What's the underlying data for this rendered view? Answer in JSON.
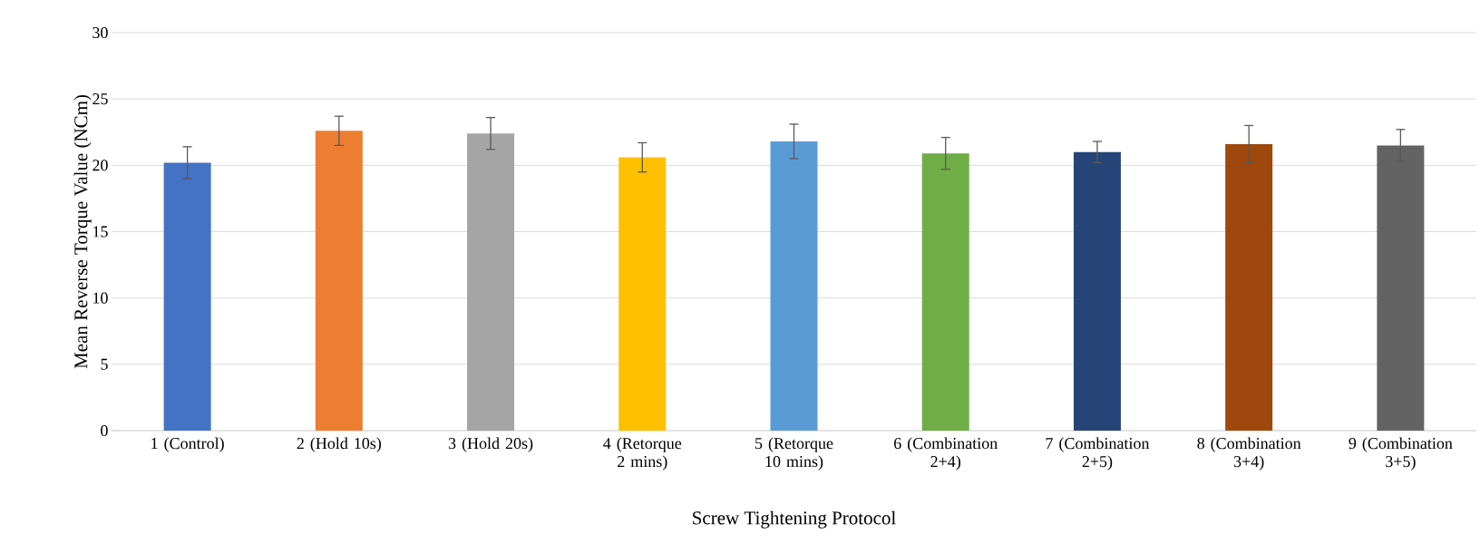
{
  "chart_data": {
    "type": "bar",
    "xlabel": "Screw Tightening Protocol",
    "ylabel": "Mean Reverse Torque Value (NCm)",
    "categories": [
      "1 (Control)",
      "2 (Hold 10s)",
      "3 (Hold 20s)",
      "4 (Retorque 2 mins)",
      "5 (Retorque 10 mins)",
      "6 (Combination 2+4)",
      "7 (Combination 2+5)",
      "8 (Combination 3+4)",
      "9 (Combination 3+5)"
    ],
    "values": [
      20.2,
      22.6,
      22.4,
      20.6,
      21.8,
      20.9,
      21.0,
      21.6,
      21.5
    ],
    "errors": [
      1.2,
      1.1,
      1.2,
      1.1,
      1.3,
      1.2,
      0.8,
      1.4,
      1.2
    ],
    "colors": [
      "#4472c4",
      "#ed7d31",
      "#a5a5a5",
      "#ffc000",
      "#5b9bd5",
      "#70ad47",
      "#264478",
      "#9e480e",
      "#636363"
    ],
    "ylim": [
      0,
      30
    ],
    "yticks": [
      0,
      5,
      10,
      15,
      20,
      25,
      30
    ],
    "grid": "y"
  }
}
